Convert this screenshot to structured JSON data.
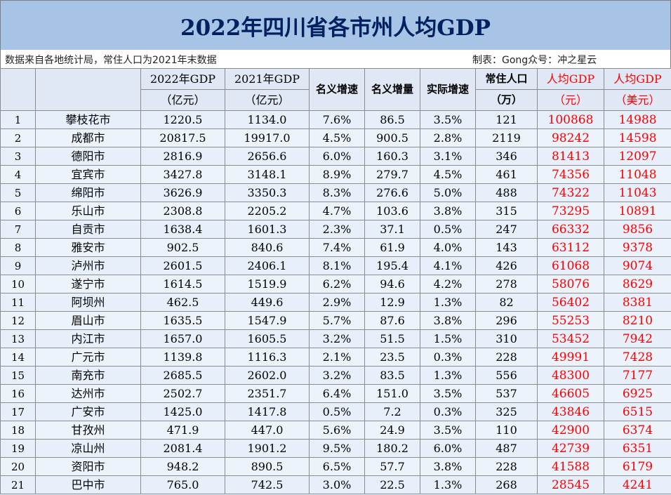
{
  "title": "2022年四川省各市州人均GDP",
  "note": {
    "source": "数据来自各地统计局，常住人口为2021年末数据",
    "author": "制表：Gong众号：冲之星云"
  },
  "header": {
    "gdp2022": [
      "2022年GDP",
      "（亿元）"
    ],
    "gdp2021": [
      "2021年GDP",
      "（亿元）"
    ],
    "nominal_growth": "名义增速",
    "nominal_increase": "名义增量",
    "real_growth": "实际增速",
    "population": [
      "常住人口",
      "（万）"
    ],
    "per_capita_cny": [
      "人均GDP",
      "（元）"
    ],
    "per_capita_usd": [
      "人均GDP",
      "（美元）"
    ]
  },
  "rows": [
    {
      "rank": "1",
      "city": "攀枝花市",
      "gdp2022": "1220.5",
      "gdp2021": "1134.0",
      "nominal": "7.6%",
      "increase": "86.5",
      "real": "3.5%",
      "pop": "121",
      "pc_cny": "100868",
      "pc_usd": "14988"
    },
    {
      "rank": "2",
      "city": "成都市",
      "gdp2022": "20817.5",
      "gdp2021": "19917.0",
      "nominal": "4.5%",
      "increase": "900.5",
      "real": "2.8%",
      "pop": "2119",
      "pc_cny": "98242",
      "pc_usd": "14598"
    },
    {
      "rank": "3",
      "city": "德阳市",
      "gdp2022": "2816.9",
      "gdp2021": "2656.6",
      "nominal": "6.0%",
      "increase": "160.3",
      "real": "3.1%",
      "pop": "346",
      "pc_cny": "81413",
      "pc_usd": "12097"
    },
    {
      "rank": "4",
      "city": "宜宾市",
      "gdp2022": "3427.8",
      "gdp2021": "3148.1",
      "nominal": "8.9%",
      "increase": "279.7",
      "real": "4.5%",
      "pop": "461",
      "pc_cny": "74356",
      "pc_usd": "11048"
    },
    {
      "rank": "5",
      "city": "绵阳市",
      "gdp2022": "3626.9",
      "gdp2021": "3350.3",
      "nominal": "8.3%",
      "increase": "276.6",
      "real": "5.0%",
      "pop": "488",
      "pc_cny": "74322",
      "pc_usd": "11043"
    },
    {
      "rank": "6",
      "city": "乐山市",
      "gdp2022": "2308.8",
      "gdp2021": "2205.2",
      "nominal": "4.7%",
      "increase": "103.6",
      "real": "3.8%",
      "pop": "315",
      "pc_cny": "73295",
      "pc_usd": "10891"
    },
    {
      "rank": "7",
      "city": "自贡市",
      "gdp2022": "1638.4",
      "gdp2021": "1601.3",
      "nominal": "2.3%",
      "increase": "37.1",
      "real": "0.5%",
      "pop": "247",
      "pc_cny": "66332",
      "pc_usd": "9856"
    },
    {
      "rank": "8",
      "city": "雅安市",
      "gdp2022": "902.5",
      "gdp2021": "840.6",
      "nominal": "7.4%",
      "increase": "61.9",
      "real": "4.0%",
      "pop": "143",
      "pc_cny": "63112",
      "pc_usd": "9378"
    },
    {
      "rank": "9",
      "city": "泸州市",
      "gdp2022": "2601.5",
      "gdp2021": "2406.1",
      "nominal": "8.1%",
      "increase": "195.4",
      "real": "4.1%",
      "pop": "426",
      "pc_cny": "61068",
      "pc_usd": "9074"
    },
    {
      "rank": "10",
      "city": "遂宁市",
      "gdp2022": "1614.5",
      "gdp2021": "1519.9",
      "nominal": "6.2%",
      "increase": "94.6",
      "real": "4.2%",
      "pop": "278",
      "pc_cny": "58076",
      "pc_usd": "8629"
    },
    {
      "rank": "11",
      "city": "阿坝州",
      "gdp2022": "462.5",
      "gdp2021": "449.6",
      "nominal": "2.9%",
      "increase": "12.9",
      "real": "1.3%",
      "pop": "82",
      "pc_cny": "56402",
      "pc_usd": "8381"
    },
    {
      "rank": "12",
      "city": "眉山市",
      "gdp2022": "1635.5",
      "gdp2021": "1547.9",
      "nominal": "5.7%",
      "increase": "87.6",
      "real": "3.8%",
      "pop": "296",
      "pc_cny": "55253",
      "pc_usd": "8210"
    },
    {
      "rank": "13",
      "city": "内江市",
      "gdp2022": "1657.0",
      "gdp2021": "1605.5",
      "nominal": "3.2%",
      "increase": "51.5",
      "real": "1.5%",
      "pop": "310",
      "pc_cny": "53452",
      "pc_usd": "7942"
    },
    {
      "rank": "14",
      "city": "广元市",
      "gdp2022": "1139.8",
      "gdp2021": "1116.3",
      "nominal": "2.1%",
      "increase": "23.5",
      "real": "0.3%",
      "pop": "228",
      "pc_cny": "49991",
      "pc_usd": "7428"
    },
    {
      "rank": "15",
      "city": "南充市",
      "gdp2022": "2685.5",
      "gdp2021": "2602.0",
      "nominal": "3.2%",
      "increase": "83.5",
      "real": "1.3%",
      "pop": "556",
      "pc_cny": "48300",
      "pc_usd": "7177"
    },
    {
      "rank": "16",
      "city": "达州市",
      "gdp2022": "2502.7",
      "gdp2021": "2351.7",
      "nominal": "6.4%",
      "increase": "151.0",
      "real": "3.5%",
      "pop": "537",
      "pc_cny": "46605",
      "pc_usd": "6925"
    },
    {
      "rank": "17",
      "city": "广安市",
      "gdp2022": "1425.0",
      "gdp2021": "1417.8",
      "nominal": "0.5%",
      "increase": "7.2",
      "real": "0.3%",
      "pop": "325",
      "pc_cny": "43846",
      "pc_usd": "6515"
    },
    {
      "rank": "18",
      "city": "甘孜州",
      "gdp2022": "471.9",
      "gdp2021": "447.0",
      "nominal": "5.6%",
      "increase": "24.9",
      "real": "3.5%",
      "pop": "110",
      "pc_cny": "42900",
      "pc_usd": "6374"
    },
    {
      "rank": "19",
      "city": "凉山州",
      "gdp2022": "2081.4",
      "gdp2021": "1901.2",
      "nominal": "9.5%",
      "increase": "180.2",
      "real": "6.0%",
      "pop": "487",
      "pc_cny": "42739",
      "pc_usd": "6351"
    },
    {
      "rank": "20",
      "city": "资阳市",
      "gdp2022": "948.2",
      "gdp2021": "890.5",
      "nominal": "6.5%",
      "increase": "57.7",
      "real": "3.8%",
      "pop": "228",
      "pc_cny": "41588",
      "pc_usd": "6179"
    },
    {
      "rank": "21",
      "city": "巴中市",
      "gdp2022": "765.0",
      "gdp2021": "742.5",
      "nominal": "3.0%",
      "increase": "22.5",
      "real": "1.3%",
      "pop": "268",
      "pc_cny": "28545",
      "pc_usd": "4241"
    }
  ],
  "colors": {
    "title_bg": "#a7c4e6",
    "title_text": "#002060",
    "highlight": "#ff0000",
    "row_bg": "#e6effa"
  }
}
